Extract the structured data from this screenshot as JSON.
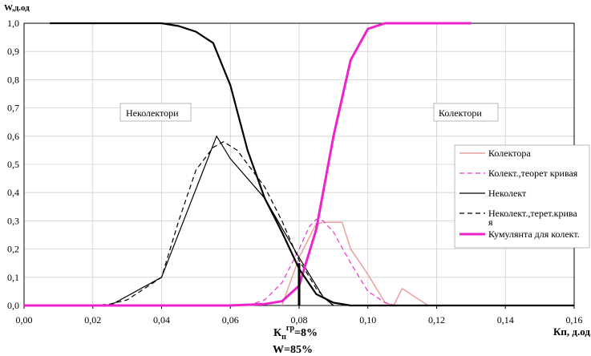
{
  "chart_data": {
    "type": "line",
    "ylabel": "W,д.од",
    "xlabel": "Кп, д.од.",
    "xlim": [
      0,
      0.16
    ],
    "ylim": [
      0,
      1.0
    ],
    "grid": true,
    "x_ticks": [
      "0,00",
      "0,02",
      "0,04",
      "0,06",
      "0,08",
      "0,10",
      "0,12",
      "0,14",
      "0,16"
    ],
    "y_ticks": [
      "0,0",
      "0,1",
      "0,2",
      "0,3",
      "0,4",
      "0,5",
      "0,6",
      "0,7",
      "0,8",
      "0,9",
      "1,0"
    ],
    "annotations": {
      "noncollector": "Неколектори",
      "collector": "Колектори",
      "kp_main": "К",
      "kp_sub": "п",
      "kp_sup": "гр",
      "kp_value": "=8%",
      "w_value": "W=85%"
    },
    "threshold_x": 0.08,
    "series": [
      {
        "name": "Колектора",
        "color": "#e8a0a0",
        "width": 1.5,
        "dash": "",
        "points": [
          [
            0.075,
            0.0
          ],
          [
            0.08,
            0.17
          ],
          [
            0.085,
            0.29
          ],
          [
            0.0875,
            0.295
          ],
          [
            0.09,
            0.295
          ],
          [
            0.0925,
            0.295
          ],
          [
            0.095,
            0.2
          ],
          [
            0.1,
            0.11
          ],
          [
            0.105,
            0.01
          ],
          [
            0.1075,
            0.0
          ],
          [
            0.11,
            0.06
          ],
          [
            0.115,
            0.02
          ],
          [
            0.1175,
            0.0
          ]
        ]
      },
      {
        "name": "Колект.,теорет кривая",
        "color": "#ee33cc",
        "width": 1.2,
        "dash": "6,4",
        "points": [
          [
            0.065,
            0.0
          ],
          [
            0.07,
            0.02
          ],
          [
            0.075,
            0.08
          ],
          [
            0.08,
            0.2
          ],
          [
            0.083,
            0.28
          ],
          [
            0.085,
            0.305
          ],
          [
            0.087,
            0.3
          ],
          [
            0.09,
            0.26
          ],
          [
            0.095,
            0.15
          ],
          [
            0.1,
            0.05
          ],
          [
            0.105,
            0.01
          ],
          [
            0.108,
            0.0
          ]
        ]
      },
      {
        "name": "Неколект",
        "color": "#000000",
        "width": 1.2,
        "dash": "",
        "points": [
          [
            0.025,
            0.0
          ],
          [
            0.04,
            0.1
          ],
          [
            0.056,
            0.6
          ],
          [
            0.06,
            0.52
          ],
          [
            0.07,
            0.38
          ],
          [
            0.08,
            0.17
          ],
          [
            0.087,
            0.03
          ],
          [
            0.09,
            0.0
          ]
        ]
      },
      {
        "name": "Неколект.,терет.крива я",
        "color": "#000000",
        "width": 1.2,
        "dash": "6,4",
        "points": [
          [
            0.02,
            0.0
          ],
          [
            0.025,
            0.005
          ],
          [
            0.03,
            0.02
          ],
          [
            0.035,
            0.06
          ],
          [
            0.04,
            0.1
          ],
          [
            0.045,
            0.3
          ],
          [
            0.05,
            0.48
          ],
          [
            0.055,
            0.56
          ],
          [
            0.058,
            0.58
          ],
          [
            0.062,
            0.55
          ],
          [
            0.07,
            0.42
          ],
          [
            0.075,
            0.3
          ],
          [
            0.08,
            0.16
          ],
          [
            0.085,
            0.06
          ],
          [
            0.088,
            0.02
          ],
          [
            0.09,
            0.0
          ]
        ]
      },
      {
        "name": "Кумулянта для колект.",
        "color": "#ee22cc",
        "width": 3,
        "dash": "",
        "points": [
          [
            0.0,
            0.0
          ],
          [
            0.06,
            0.0
          ],
          [
            0.07,
            0.005
          ],
          [
            0.075,
            0.015
          ],
          [
            0.08,
            0.07
          ],
          [
            0.085,
            0.27
          ],
          [
            0.09,
            0.6
          ],
          [
            0.095,
            0.87
          ],
          [
            0.1,
            0.98
          ],
          [
            0.105,
            1.0
          ],
          [
            0.13,
            1.0
          ]
        ]
      },
      {
        "name": "",
        "color": "#000000",
        "width": 2.2,
        "dash": "",
        "points": [
          [
            0.0075,
            1.0
          ],
          [
            0.025,
            1.0
          ],
          [
            0.04,
            1.0
          ],
          [
            0.045,
            0.99
          ],
          [
            0.05,
            0.97
          ],
          [
            0.055,
            0.93
          ],
          [
            0.06,
            0.78
          ],
          [
            0.065,
            0.55
          ],
          [
            0.07,
            0.38
          ],
          [
            0.075,
            0.26
          ],
          [
            0.08,
            0.13
          ],
          [
            0.085,
            0.04
          ],
          [
            0.09,
            0.01
          ],
          [
            0.095,
            0.0
          ],
          [
            0.16,
            0.0
          ]
        ]
      }
    ],
    "legend": [
      "Колектора",
      "Колект.,теорет кривая",
      "Неколект",
      "Неколект.,терет.крива я",
      "Кумулянта для колект."
    ]
  }
}
